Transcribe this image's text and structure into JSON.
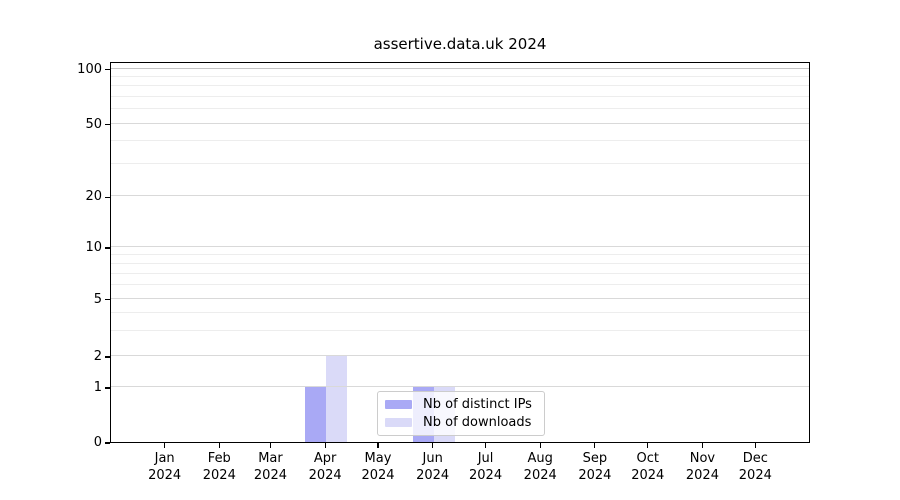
{
  "chart_data": {
    "type": "bar",
    "title": "assertive.data.uk 2024",
    "x_axis": {
      "categories": [
        "Jan",
        "Feb",
        "Mar",
        "Apr",
        "May",
        "Jun",
        "Jul",
        "Aug",
        "Sep",
        "Oct",
        "Nov",
        "Dec"
      ],
      "year_label": "2024"
    },
    "y_axis": {
      "scale": "symlog",
      "major_ticks": [
        0,
        1,
        2,
        5,
        10,
        20,
        50,
        100
      ],
      "minor_ticks": [
        3,
        4,
        6,
        7,
        8,
        9,
        30,
        40,
        60,
        70,
        80,
        90
      ],
      "ylim": [
        0,
        110
      ],
      "grid": "on"
    },
    "series": [
      {
        "name": "Nb of distinct IPs",
        "color": "#a9a9f5",
        "values": [
          0,
          0,
          0,
          1,
          0,
          1,
          0,
          0,
          0,
          0,
          0,
          0
        ]
      },
      {
        "name": "Nb of downloads",
        "color": "#dadaf8",
        "values": [
          0,
          0,
          0,
          2,
          0,
          1,
          0,
          0,
          0,
          0,
          0,
          0
        ]
      }
    ],
    "legend": {
      "position": "lower center",
      "entries": [
        "Nb of distinct IPs",
        "Nb of downloads"
      ]
    },
    "colors": {
      "spine": "#000000",
      "grid_major": "#d9d9d9",
      "grid_minor": "#ededed",
      "grid_top_line": "#c4c4c4",
      "text": "#000000",
      "background": "#ffffff"
    }
  }
}
